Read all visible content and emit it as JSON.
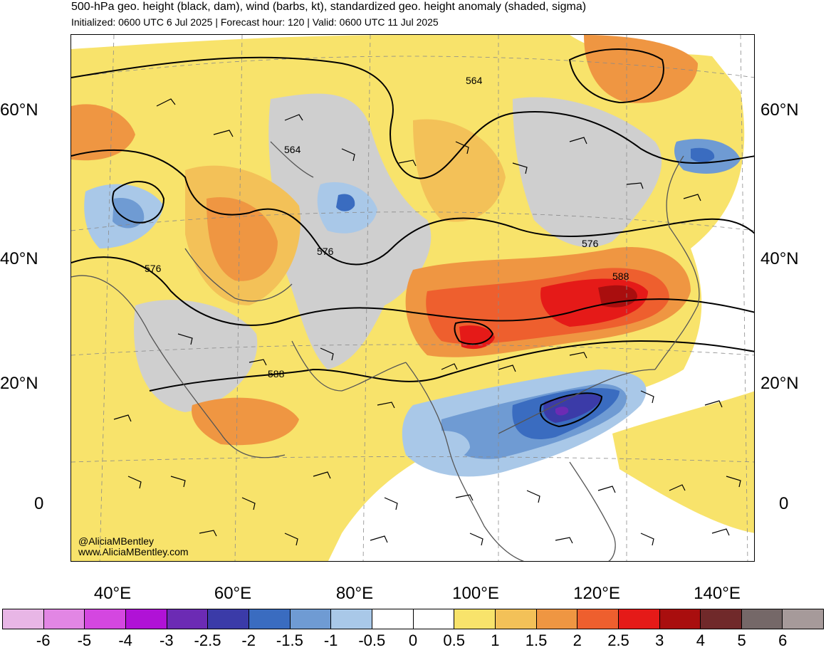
{
  "title": "500-hPa geo. height (black, dam), wind (barbs, kt), standardized geo. height anomaly (shaded, sigma)",
  "subtitle": "Initialized: 0600 UTC 6 Jul 2025 | Forecast hour: 120 | Valid: 0600 UTC 11 Jul 2025",
  "lat_labels": [
    "60°N",
    "40°N",
    "20°N",
    "0"
  ],
  "lon_labels": [
    "40°E",
    "60°E",
    "80°E",
    "100°E",
    "120°E",
    "140°E"
  ],
  "contour_labels": [
    "564",
    "564",
    "576",
    "576",
    "576",
    "588",
    "588"
  ],
  "credit": {
    "handle": "@AliciaMBentley",
    "site": "www.AliciaMBentley.com"
  },
  "colorbar": {
    "colors": [
      "#e8b6e6",
      "#e286e4",
      "#d447e0",
      "#b012d6",
      "#6c2bb4",
      "#3b3ba8",
      "#3a6cc0",
      "#6f9bd3",
      "#a9c8e8",
      "#ffffff",
      "#ffffff",
      "#f8e36b",
      "#f3c158",
      "#ef9642",
      "#ee5f2e",
      "#e51a18",
      "#a90e0e",
      "#70292a",
      "#756868",
      "#a69a9a"
    ],
    "ticks": [
      "-6",
      "-5",
      "-4",
      "-3",
      "-2.5",
      "-2",
      "-1.5",
      "-1",
      "-0.5",
      "0",
      "0.5",
      "1",
      "1.5",
      "2",
      "2.5",
      "3",
      "4",
      "5",
      "6"
    ]
  }
}
